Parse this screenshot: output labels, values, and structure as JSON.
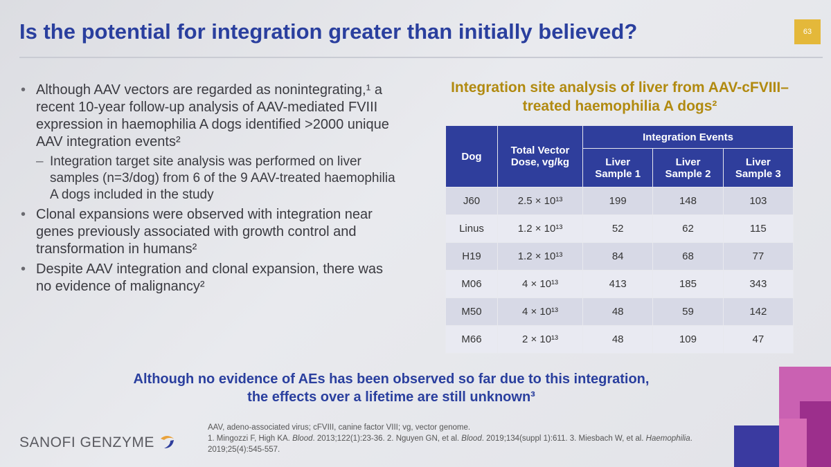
{
  "header": {
    "title": "Is the potential for integration greater than initially believed?",
    "page_number": "63"
  },
  "bullets": [
    {
      "level": 1,
      "text": "Although AAV vectors are regarded as nonintegrating,¹ a recent 10-year follow-up analysis of AAV-mediated FVIII expression in haemophilia A dogs identified >2000 unique AAV integration events²"
    },
    {
      "level": 2,
      "text": "Integration target site analysis was performed on liver samples (n=3/dog) from 6 of the 9 AAV-treated haemophilia A dogs included in the study"
    },
    {
      "level": 1,
      "text": "Clonal expansions were observed with integration near genes previously associated with growth control and transformation in humans²"
    },
    {
      "level": 1,
      "text": "Despite AAV integration and clonal expansion, there was no evidence of malignancy²"
    }
  ],
  "table": {
    "caption": "Integration site analysis of liver from AAV-cFVIII–treated haemophilia A dogs²",
    "header": {
      "dog": "Dog",
      "dose": "Total Vector Dose, vg/kg",
      "events": "Integration Events",
      "samples": [
        "Liver Sample 1",
        "Liver Sample 2",
        "Liver Sample 3"
      ]
    },
    "rows": [
      [
        "J60",
        "2.5 × 10¹³",
        199,
        148,
        103
      ],
      [
        "Linus",
        "1.2 × 10¹³",
        52,
        62,
        115
      ],
      [
        "H19",
        "1.2 × 10¹³",
        84,
        68,
        77
      ],
      [
        "M06",
        "4 × 10¹³",
        413,
        185,
        343
      ],
      [
        "M50",
        "4 × 10¹³",
        48,
        59,
        142
      ],
      [
        "M66",
        "2 × 10¹³",
        48,
        109,
        47
      ]
    ]
  },
  "conclusion": "Although no evidence of AEs has been observed so far due to this integration, the effects over a lifetime are still unknown³",
  "footer": {
    "logo": "SANOFI GENZYME",
    "abbreviations": "AAV, adeno-associated virus; cFVIII, canine factor VIII; vg, vector genome.",
    "references": [
      "1. Mingozzi F, High KA. ",
      "Blood",
      ". 2013;122(1):23-36. 2. Nguyen GN, et al. ",
      "Blood",
      ". 2019;134(suppl 1):611. 3. Miesbach W, et al. ",
      "Haemophilia",
      ". 2019;25(4):545-557."
    ]
  }
}
